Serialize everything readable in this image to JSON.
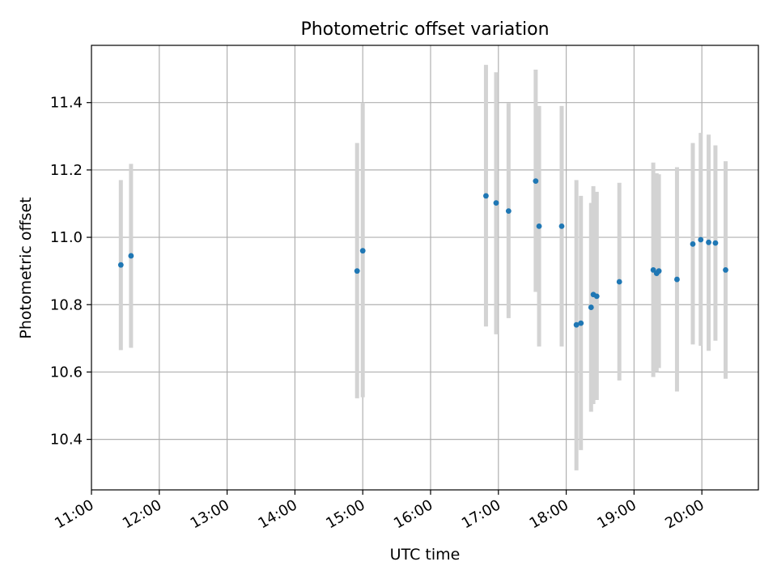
{
  "chart_data": {
    "type": "scatter",
    "title": "Photometric offset variation",
    "xlabel": "UTC time",
    "ylabel": "Photometric offset",
    "xlim": [
      "11:00",
      "20:50"
    ],
    "ylim": [
      10.25,
      11.57
    ],
    "x_ticks": [
      "11:00",
      "12:00",
      "13:00",
      "14:00",
      "15:00",
      "16:00",
      "17:00",
      "18:00",
      "19:00",
      "20:00"
    ],
    "y_ticks": [
      10.4,
      10.6,
      10.8,
      11.0,
      11.2,
      11.4
    ],
    "y_tick_labels": [
      "10.4",
      "10.6",
      "10.8",
      "11.0",
      "11.2",
      "11.4"
    ],
    "grid": true,
    "point_color": "#1f77b4",
    "errorbar_color": "#d3d3d3",
    "points": [
      {
        "x": "11:26",
        "y": 10.918,
        "ylow": 10.665,
        "yhigh": 11.17
      },
      {
        "x": "11:35",
        "y": 10.945,
        "ylow": 10.672,
        "yhigh": 11.218
      },
      {
        "x": "14:55",
        "y": 10.9,
        "ylow": 10.522,
        "yhigh": 11.28
      },
      {
        "x": "15:00",
        "y": 10.96,
        "ylow": 10.525,
        "yhigh": 11.4
      },
      {
        "x": "16:49",
        "y": 11.123,
        "ylow": 10.735,
        "yhigh": 11.512
      },
      {
        "x": "16:58",
        "y": 11.102,
        "ylow": 10.712,
        "yhigh": 11.49
      },
      {
        "x": "17:09",
        "y": 11.078,
        "ylow": 10.76,
        "yhigh": 11.398
      },
      {
        "x": "17:33",
        "y": 11.167,
        "ylow": 10.838,
        "yhigh": 11.498
      },
      {
        "x": "17:36",
        "y": 11.033,
        "ylow": 10.676,
        "yhigh": 11.39
      },
      {
        "x": "17:56",
        "y": 11.033,
        "ylow": 10.676,
        "yhigh": 11.39
      },
      {
        "x": "18:09",
        "y": 10.74,
        "ylow": 10.308,
        "yhigh": 11.17
      },
      {
        "x": "18:13",
        "y": 10.745,
        "ylow": 10.368,
        "yhigh": 11.123
      },
      {
        "x": "18:22",
        "y": 10.792,
        "ylow": 10.482,
        "yhigh": 11.102
      },
      {
        "x": "18:24",
        "y": 10.83,
        "ylow": 10.505,
        "yhigh": 11.152
      },
      {
        "x": "18:27",
        "y": 10.825,
        "ylow": 10.517,
        "yhigh": 11.135
      },
      {
        "x": "18:47",
        "y": 10.868,
        "ylow": 10.575,
        "yhigh": 11.162
      },
      {
        "x": "19:17",
        "y": 10.903,
        "ylow": 10.585,
        "yhigh": 11.222
      },
      {
        "x": "19:20",
        "y": 10.893,
        "ylow": 10.6,
        "yhigh": 11.19
      },
      {
        "x": "19:22",
        "y": 10.9,
        "ylow": 10.612,
        "yhigh": 11.187
      },
      {
        "x": "19:38",
        "y": 10.875,
        "ylow": 10.542,
        "yhigh": 11.208
      },
      {
        "x": "19:52",
        "y": 10.98,
        "ylow": 10.682,
        "yhigh": 11.28
      },
      {
        "x": "19:59",
        "y": 10.993,
        "ylow": 10.678,
        "yhigh": 11.31
      },
      {
        "x": "20:06",
        "y": 10.985,
        "ylow": 10.663,
        "yhigh": 11.305
      },
      {
        "x": "20:12",
        "y": 10.983,
        "ylow": 10.693,
        "yhigh": 11.273
      },
      {
        "x": "20:21",
        "y": 10.903,
        "ylow": 10.58,
        "yhigh": 11.226
      }
    ]
  }
}
